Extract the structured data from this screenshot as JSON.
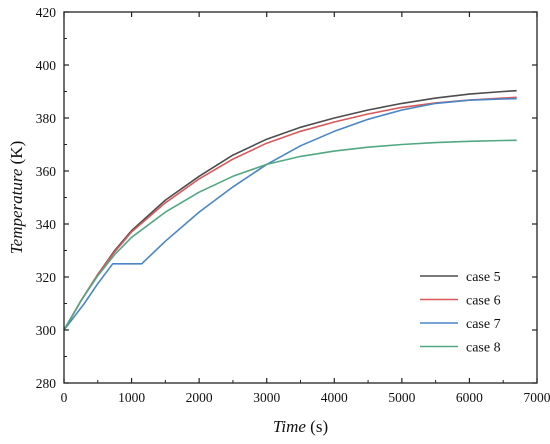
{
  "chart_data": {
    "type": "line",
    "title": "",
    "xlabel": {
      "italic": "Time",
      "unit": " (s)"
    },
    "ylabel": {
      "italic": "Temperature",
      "unit": " (K)"
    },
    "xlim": [
      0,
      7000
    ],
    "ylim": [
      280,
      420
    ],
    "x_ticks": [
      0,
      1000,
      2000,
      3000,
      4000,
      5000,
      6000,
      7000
    ],
    "y_ticks": [
      280,
      300,
      320,
      340,
      360,
      380,
      400,
      420
    ],
    "grid": false,
    "legend_position": "bottom-right",
    "series": [
      {
        "name": "case 5",
        "color": "#4d4d4d",
        "points": [
          [
            0,
            300
          ],
          [
            250,
            311
          ],
          [
            500,
            321
          ],
          [
            750,
            330
          ],
          [
            1000,
            337.5
          ],
          [
            1500,
            349
          ],
          [
            2000,
            358
          ],
          [
            2500,
            366
          ],
          [
            3000,
            372
          ],
          [
            3500,
            376.5
          ],
          [
            4000,
            380
          ],
          [
            4500,
            383
          ],
          [
            5000,
            385.5
          ],
          [
            5500,
            387.5
          ],
          [
            6000,
            389
          ],
          [
            6500,
            390
          ],
          [
            6700,
            390.3
          ]
        ]
      },
      {
        "name": "case 6",
        "color": "#d9595b",
        "points": [
          [
            0,
            300
          ],
          [
            250,
            311
          ],
          [
            500,
            321
          ],
          [
            750,
            329.5
          ],
          [
            1000,
            337
          ],
          [
            1500,
            348
          ],
          [
            2000,
            357
          ],
          [
            2500,
            364.5
          ],
          [
            3000,
            370.5
          ],
          [
            3500,
            375
          ],
          [
            4000,
            378.5
          ],
          [
            4500,
            381.5
          ],
          [
            5000,
            384
          ],
          [
            5500,
            385.7
          ],
          [
            6000,
            386.8
          ],
          [
            6500,
            387.5
          ],
          [
            6700,
            387.8
          ]
        ]
      },
      {
        "name": "case 7",
        "color": "#4a86c5",
        "points": [
          [
            0,
            300
          ],
          [
            300,
            310
          ],
          [
            500,
            317.5
          ],
          [
            720,
            325
          ],
          [
            1150,
            325
          ],
          [
            1500,
            333.5
          ],
          [
            2000,
            344.5
          ],
          [
            2500,
            354
          ],
          [
            3000,
            362.5
          ],
          [
            3500,
            369.5
          ],
          [
            4000,
            375
          ],
          [
            4500,
            379.5
          ],
          [
            5000,
            383
          ],
          [
            5500,
            385.5
          ],
          [
            6000,
            386.7
          ],
          [
            6500,
            387.2
          ],
          [
            6700,
            387.3
          ]
        ]
      },
      {
        "name": "case 8",
        "color": "#52a882",
        "points": [
          [
            0,
            300
          ],
          [
            250,
            311
          ],
          [
            500,
            320.5
          ],
          [
            750,
            328.5
          ],
          [
            1000,
            335
          ],
          [
            1500,
            344.5
          ],
          [
            2000,
            352
          ],
          [
            2500,
            358
          ],
          [
            3000,
            362.5
          ],
          [
            3500,
            365.5
          ],
          [
            4000,
            367.5
          ],
          [
            4500,
            369
          ],
          [
            5000,
            370
          ],
          [
            5500,
            370.7
          ],
          [
            6000,
            371.2
          ],
          [
            6500,
            371.5
          ],
          [
            6700,
            371.6
          ]
        ]
      }
    ]
  }
}
